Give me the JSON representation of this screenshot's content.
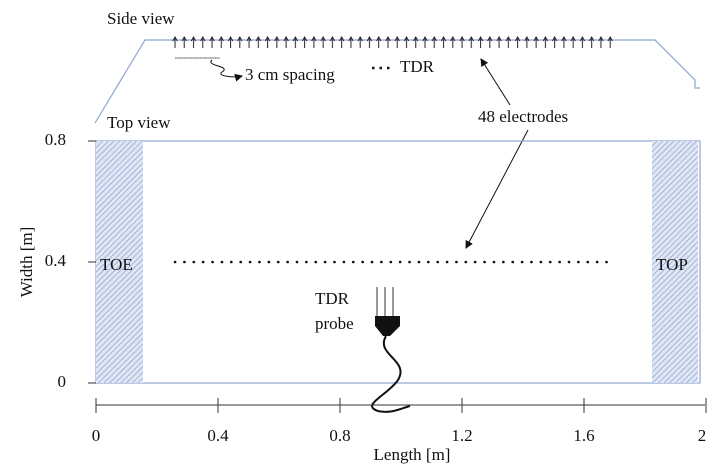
{
  "side_view": {
    "title": "Side view",
    "spacing_label": "3 cm spacing",
    "tdr_legend": "TDR",
    "electrodes_label": "48  electrodes"
  },
  "top_view": {
    "title": "Top view",
    "toe": "TOE",
    "top": "TOP",
    "tdr_probe": [
      "TDR",
      "probe"
    ]
  },
  "axes": {
    "x_label": "Length [m]",
    "y_label": "Width [m]",
    "xlim": [
      0,
      2
    ],
    "ylim": [
      0,
      0.8
    ],
    "xticks": [
      0,
      0.4,
      0.8,
      1.2,
      1.6,
      2
    ],
    "yticks": [
      0,
      0.4,
      0.8
    ]
  }
}
